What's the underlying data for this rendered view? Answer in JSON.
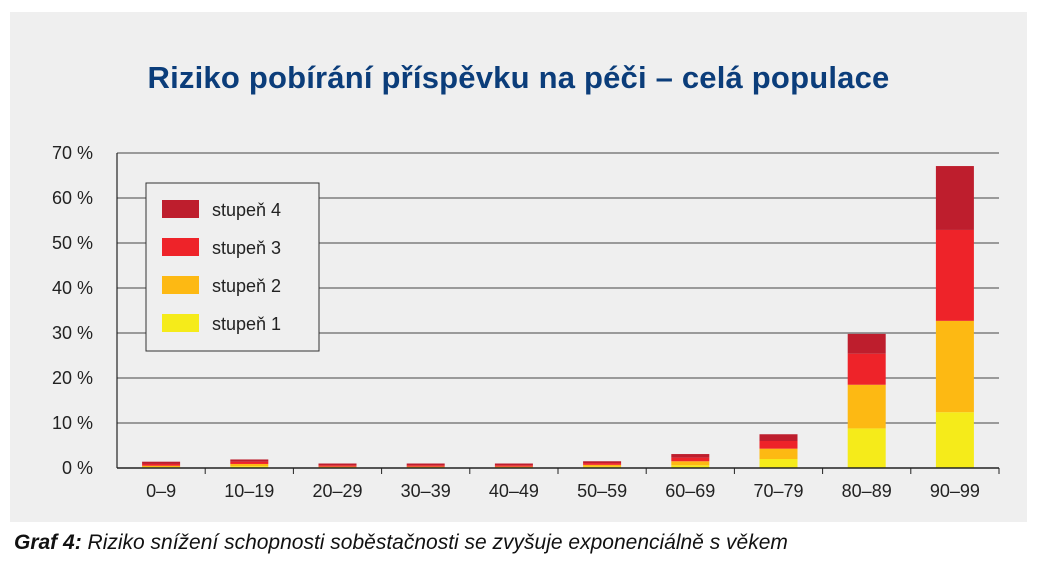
{
  "title": "Riziko pobírání příspěvku na péči – celá populace",
  "caption": {
    "label": "Graf 4:",
    "text": " Riziko snížení schopnosti soběstačnosti se zvyšuje exponenciálně s věkem"
  },
  "chart_data": {
    "type": "bar",
    "stacked": true,
    "title": "Riziko pobírání příspěvku na péči – celá populace",
    "xlabel": "",
    "ylabel": "",
    "ylim": [
      0,
      70
    ],
    "yticks": [
      0,
      10,
      20,
      30,
      40,
      50,
      60,
      70
    ],
    "ytick_labels": [
      "0 %",
      "10 %",
      "20 %",
      "30 %",
      "40 %",
      "50 %",
      "60 %",
      "70 %"
    ],
    "grid": "horizontal",
    "legend_position": "top-left",
    "categories": [
      "0–9",
      "10–19",
      "20–29",
      "30–39",
      "40–49",
      "50–59",
      "60–69",
      "70–79",
      "80–89",
      "90–99"
    ],
    "series": [
      {
        "name": "stupeň 1",
        "color": "#f5eb1a",
        "values": [
          0.2,
          0.4,
          0.1,
          0.1,
          0.1,
          0.3,
          0.6,
          2.0,
          8.8,
          12.4
        ]
      },
      {
        "name": "stupeň 2",
        "color": "#fdb913",
        "values": [
          0.3,
          0.5,
          0.2,
          0.2,
          0.2,
          0.4,
          0.9,
          2.3,
          9.7,
          20.3
        ]
      },
      {
        "name": "stupeň 3",
        "color": "#ee2329",
        "values": [
          0.4,
          0.5,
          0.3,
          0.3,
          0.3,
          0.4,
          0.8,
          1.7,
          6.9,
          20.2
        ]
      },
      {
        "name": "stupeň 4",
        "color": "#be1e2d",
        "values": [
          0.5,
          0.5,
          0.4,
          0.4,
          0.4,
          0.4,
          0.8,
          1.5,
          4.4,
          14.2
        ]
      }
    ]
  }
}
